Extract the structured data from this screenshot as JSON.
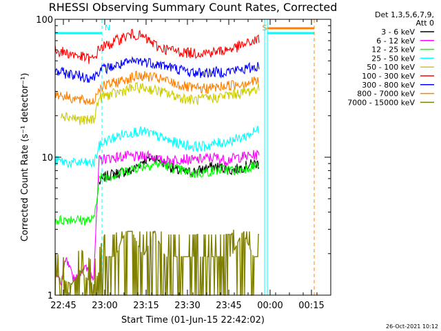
{
  "chart_data": {
    "type": "line",
    "title": "RHESSI Observing Summary Count Rates, Corrected",
    "xlabel": "Start Time (01-Jun-15 22:42:02)",
    "ylabel": "Corrected Count Rate (s⁻¹ detector⁻¹)",
    "y_scale": "log",
    "ylim": [
      1,
      100
    ],
    "xlim_minutes": [
      0,
      100
    ],
    "x_ticks": [
      {
        "label": "22:45",
        "minute": 3
      },
      {
        "label": "23:00",
        "minute": 18
      },
      {
        "label": "23:15",
        "minute": 33
      },
      {
        "label": "23:30",
        "minute": 48
      },
      {
        "label": "23:45",
        "minute": 63
      },
      {
        "label": "00:00",
        "minute": 78
      },
      {
        "label": "00:15",
        "minute": 93
      }
    ],
    "y_ticks": [
      {
        "label": "100",
        "value": 100
      },
      {
        "label": "10",
        "value": 10
      },
      {
        "label": "1",
        "value": 1
      }
    ],
    "legend_header": [
      "Det 1,3,5,6,7,9,",
      "Att 0"
    ],
    "legend_position": "right",
    "series": [
      {
        "name": "3 - 6 keV",
        "color": "#000000",
        "x": [
          16,
          18,
          20,
          24,
          28,
          32,
          36,
          40,
          44,
          48,
          52,
          56,
          60,
          64,
          68,
          72,
          74
        ],
        "values": [
          6.5,
          7.2,
          7.5,
          7.8,
          8.0,
          9.5,
          10.0,
          9.0,
          8.0,
          7.8,
          8.0,
          8.5,
          8.5,
          8.0,
          8.5,
          9.0,
          9.0
        ]
      },
      {
        "name": "6 - 12 keV",
        "color": "#ff00ff",
        "x": [
          0,
          2,
          4,
          6,
          8,
          10,
          12,
          14,
          16,
          18,
          22,
          26,
          30,
          34,
          38,
          42,
          46,
          50,
          54,
          58,
          62,
          66,
          70,
          74
        ],
        "values": [
          1.5,
          1.2,
          1.8,
          1.4,
          1.3,
          1.6,
          1.5,
          1.4,
          9.5,
          9.8,
          10.0,
          10.2,
          10.0,
          10.5,
          9.5,
          9.5,
          9.8,
          9.5,
          9.8,
          10.0,
          9.5,
          10.0,
          10.2,
          10.5
        ]
      },
      {
        "name": "12 - 25 keV",
        "color": "#00ff00",
        "x": [
          0,
          3,
          6,
          9,
          12,
          14,
          16,
          18,
          22,
          26,
          30,
          34,
          38,
          42,
          46,
          50,
          54,
          58,
          62,
          66,
          70,
          74
        ],
        "values": [
          3.5,
          3.5,
          3.6,
          3.5,
          3.5,
          3.5,
          7.0,
          7.2,
          7.5,
          8.0,
          8.5,
          8.8,
          9.0,
          8.5,
          8.0,
          7.6,
          7.8,
          8.0,
          8.2,
          8.0,
          8.5,
          8.8
        ]
      },
      {
        "name": "25 - 50 keV",
        "color": "#00ffff",
        "x": [
          0,
          3,
          6,
          9,
          12,
          14,
          16,
          18,
          22,
          26,
          30,
          34,
          38,
          42,
          46,
          50,
          54,
          58,
          62,
          66,
          70,
          74
        ],
        "values": [
          9.5,
          9.3,
          9.0,
          9.2,
          9.0,
          9.0,
          12.0,
          13.0,
          14.0,
          15.0,
          15.5,
          15.0,
          14.0,
          13.0,
          12.5,
          12.0,
          12.0,
          12.5,
          13.0,
          13.5,
          14.5,
          16.0
        ]
      },
      {
        "name": "50 - 100 keV",
        "color": "#cccc00",
        "x": [
          2,
          4,
          6,
          8,
          10,
          12,
          14,
          16,
          18,
          22,
          26,
          30,
          34,
          38,
          42,
          46,
          50,
          54,
          58,
          62,
          66,
          70,
          74
        ],
        "values": [
          21.0,
          20.0,
          19.5,
          19.0,
          18.5,
          18.5,
          19.0,
          27.0,
          28.0,
          29.0,
          31.0,
          32.0,
          31.5,
          30.0,
          28.5,
          27.0,
          26.0,
          26.5,
          27.0,
          28.0,
          29.0,
          30.0,
          32.0
        ]
      },
      {
        "name": "100 - 300 keV",
        "color": "#ff0000",
        "x": [
          0,
          3,
          6,
          9,
          12,
          14,
          16,
          18,
          20,
          22,
          24,
          26,
          28,
          30,
          32,
          34,
          36,
          38,
          42,
          46,
          50,
          54,
          58,
          62,
          66,
          70,
          74
        ],
        "values": [
          60.0,
          58.0,
          56.0,
          54.0,
          52.0,
          51.0,
          62.0,
          64.0,
          66.0,
          70.0,
          73.0,
          76.0,
          78.0,
          77.0,
          74.0,
          70.0,
          66.0,
          62.0,
          60.0,
          58.0,
          57.0,
          57.5,
          58.0,
          60.0,
          63.0,
          67.0,
          72.0
        ]
      },
      {
        "name": "300 - 800 keV",
        "color": "#0000ff",
        "x": [
          0,
          3,
          6,
          9,
          12,
          14,
          16,
          18,
          22,
          26,
          30,
          34,
          38,
          42,
          46,
          50,
          54,
          58,
          62,
          66,
          70,
          74
        ],
        "values": [
          42.0,
          41.0,
          40.0,
          39.0,
          38.0,
          38.0,
          43.0,
          44.0,
          46.0,
          48.0,
          50.0,
          49.0,
          47.0,
          45.0,
          43.0,
          41.0,
          41.0,
          41.5,
          42.0,
          43.0,
          44.0,
          46.0
        ]
      },
      {
        "name": "800 - 7000 keV",
        "color": "#ff8000",
        "x": [
          0,
          3,
          6,
          9,
          12,
          14,
          16,
          18,
          22,
          26,
          30,
          34,
          38,
          42,
          46,
          50,
          54,
          58,
          62,
          66,
          70,
          74
        ],
        "values": [
          29.0,
          28.0,
          27.0,
          26.0,
          25.5,
          25.5,
          32.0,
          33.0,
          35.0,
          37.0,
          39.0,
          38.5,
          37.0,
          35.0,
          33.0,
          31.5,
          31.5,
          32.0,
          33.0,
          34.0,
          35.0,
          36.0
        ]
      },
      {
        "name": "7000 - 15000 keV",
        "color": "#808000",
        "x": [
          0,
          3,
          6,
          9,
          12,
          14,
          16,
          18,
          22,
          24,
          26,
          28,
          32,
          36,
          40,
          44,
          48,
          52,
          56,
          60,
          64,
          68,
          72,
          74
        ],
        "values": [
          1.4,
          1.3,
          1.2,
          1.5,
          1.3,
          1.2,
          1.5,
          1.9,
          1.9,
          2.5,
          2.9,
          2.9,
          1.9,
          2.9,
          1.9,
          1.9,
          1.9,
          1.9,
          1.9,
          1.9,
          1.9,
          2.9,
          1.9,
          1.9
        ]
      }
    ],
    "annotations": [
      {
        "text": "N",
        "color": "#00ffff",
        "minute": 19,
        "note": "night flag"
      },
      {
        "text": "S",
        "color": "#ff8000",
        "minute": 76,
        "note": "SAA flag"
      }
    ],
    "flag_bars": [
      {
        "name": "night",
        "color": "#00ffff",
        "minutes": [
          [
            0,
            17
          ],
          [
            77,
            94
          ]
        ]
      },
      {
        "name": "saa",
        "color": "#ff8000",
        "minutes": [
          [
            77,
            94
          ]
        ]
      }
    ],
    "vertical_markers": [
      {
        "color": "#00ffff",
        "style": "solid",
        "minute": 0
      },
      {
        "color": "#00ffff",
        "style": "dashed",
        "minute": 17
      },
      {
        "color": "#00ffff",
        "style": "solid",
        "minute": 76
      },
      {
        "color": "#00ffff",
        "style": "solid",
        "minute": 77
      },
      {
        "color": "#ff8000",
        "style": "dashed",
        "minute": 94
      }
    ]
  },
  "footer": {
    "timestamp": "26-Oct-2021 10:12"
  }
}
